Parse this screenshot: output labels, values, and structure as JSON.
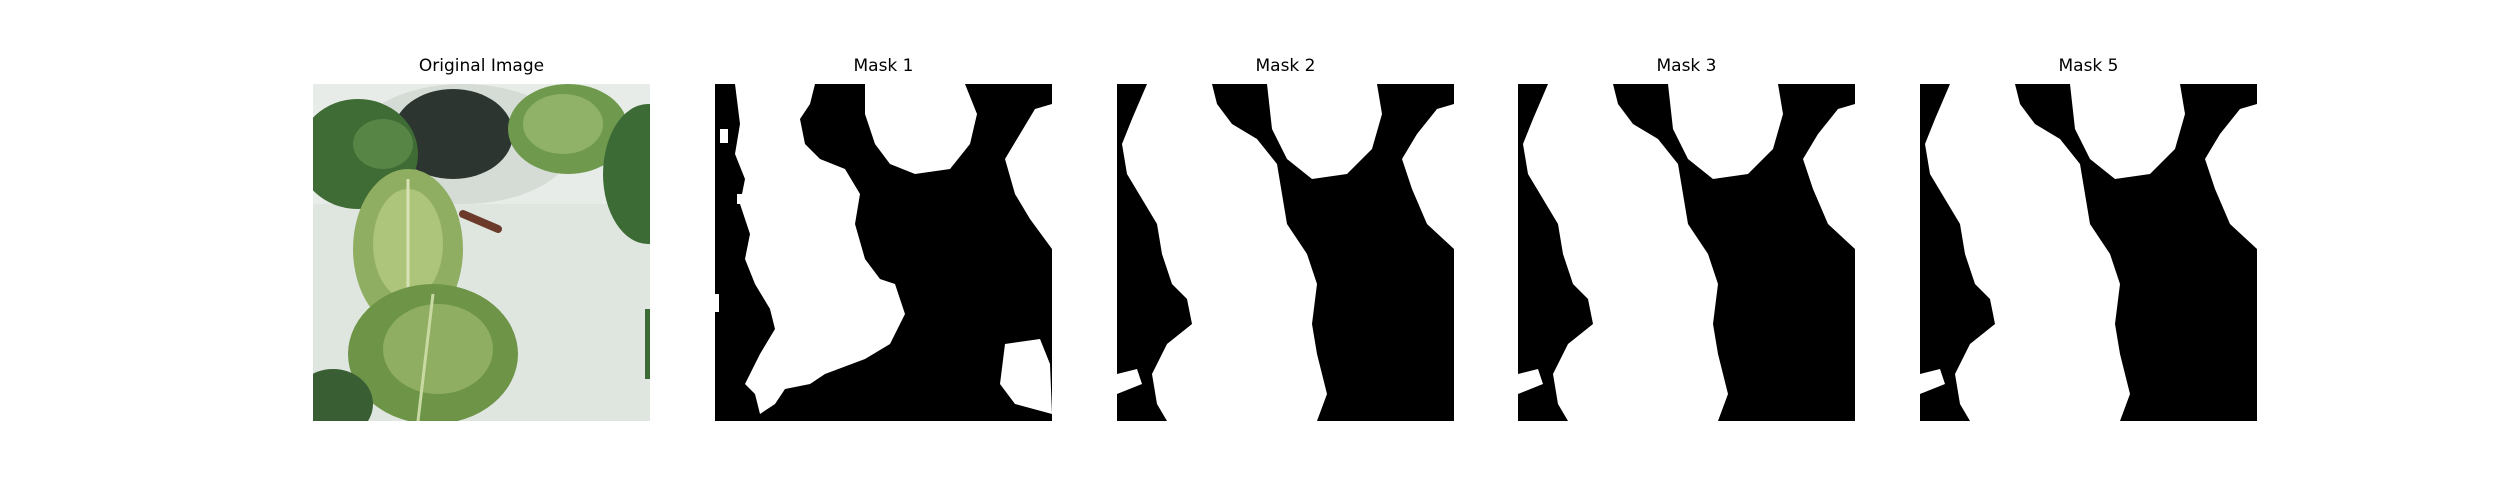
{
  "figure": {
    "panels": [
      {
        "title": "Original Image",
        "kind": "photo"
      },
      {
        "title": "Mask 1",
        "kind": "mask"
      },
      {
        "title": "Mask 2",
        "kind": "mask"
      },
      {
        "title": "Mask 3",
        "kind": "mask"
      },
      {
        "title": "Mask 5",
        "kind": "mask"
      }
    ]
  },
  "colors": {
    "mask_foreground": "#ffffff",
    "mask_background": "#000000",
    "leaf_dark": "#4f7a3c",
    "leaf_light": "#a9c07a",
    "tray_background": "#dfe6df"
  }
}
